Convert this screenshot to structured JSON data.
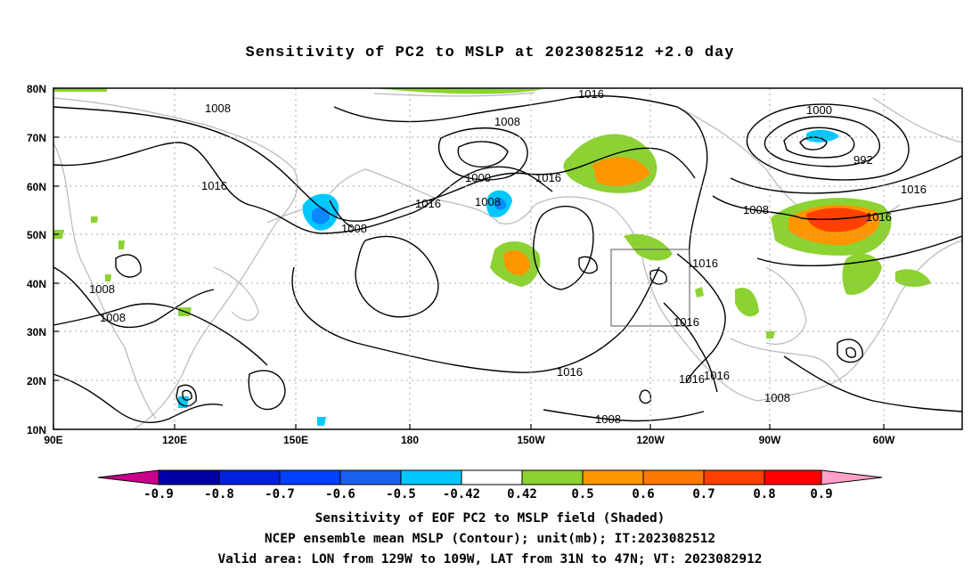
{
  "title": "Sensitivity of PC2 to MSLP at 2023082512 +2.0 day",
  "map": {
    "lat_labels": [
      "80N",
      "70N",
      "60N",
      "50N",
      "40N",
      "30N",
      "20N",
      "10N"
    ],
    "lon_labels": [
      "90E",
      "120E",
      "150E",
      "180",
      "150W",
      "120W",
      "90W",
      "60W"
    ],
    "contour_labels": [
      {
        "text": "1008"
      },
      {
        "text": "1016"
      },
      {
        "text": "1008"
      },
      {
        "text": "1016"
      },
      {
        "text": "1008"
      },
      {
        "text": "1000"
      },
      {
        "text": "1008"
      },
      {
        "text": "1016"
      },
      {
        "text": "1016"
      },
      {
        "text": "1000"
      },
      {
        "text": "992"
      },
      {
        "text": "1016"
      },
      {
        "text": "1008"
      },
      {
        "text": "1016"
      },
      {
        "text": "1016"
      },
      {
        "text": "1016"
      },
      {
        "text": "1016"
      },
      {
        "text": "1016"
      },
      {
        "text": "1016"
      },
      {
        "text": "1008"
      },
      {
        "text": "1008"
      },
      {
        "text": "1008"
      },
      {
        "text": "1008"
      }
    ],
    "valid_box": {
      "lon_from": "129W",
      "lon_to": "109W",
      "lat_from": "31N",
      "lat_to": "47N"
    }
  },
  "colorbar": {
    "labels": [
      "-0.9",
      "-0.8",
      "-0.7",
      "-0.6",
      "-0.5",
      "-0.42",
      "0.42",
      "0.5",
      "0.6",
      "0.7",
      "0.8",
      "0.9"
    ],
    "colors": [
      "#c8008c",
      "#0000a8",
      "#0020e0",
      "#0040ff",
      "#1860f0",
      "#0a88ff",
      "#00c8ff",
      "#ffffff",
      "#8cd232",
      "#ff9600",
      "#ff7800",
      "#ff4000",
      "#ff0000",
      "#ffa0c8"
    ]
  },
  "footer": {
    "line1": "Sensitivity of EOF PC2 to MSLP field (Shaded)",
    "line2": "NCEP ensemble mean MSLP (Contour); unit(mb); IT:2023082512",
    "line3": "Valid area: LON from 129W to 109W, LAT from 31N to 47N; VT: 2023082912"
  }
}
